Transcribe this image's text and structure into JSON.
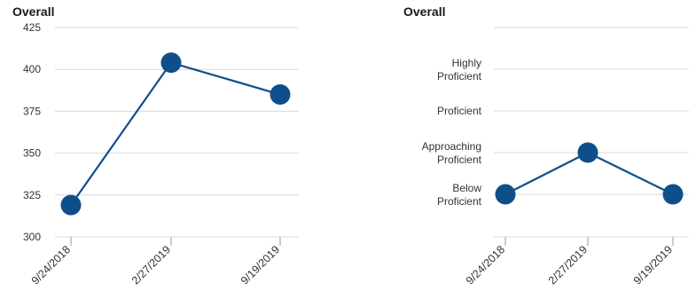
{
  "chart_data": [
    {
      "type": "line",
      "title": "Overall",
      "categories": [
        "9/24/2018",
        "2/27/2019",
        "9/19/2019"
      ],
      "values": [
        319,
        404,
        385
      ],
      "yticks": [
        300,
        325,
        350,
        375,
        400,
        425
      ],
      "ylim": [
        300,
        425
      ],
      "grid": true,
      "color": "#0e4f8b"
    },
    {
      "type": "line",
      "title": "Overall",
      "categories": [
        "9/24/2018",
        "2/27/2019",
        "9/19/2019"
      ],
      "levels": [
        "Below Proficient",
        "Approaching Proficient",
        "Proficient",
        "Highly Proficient"
      ],
      "values": [
        "Below Proficient",
        "Approaching Proficient",
        "Below Proficient"
      ],
      "grid": true,
      "color": "#0e4f8b"
    }
  ]
}
